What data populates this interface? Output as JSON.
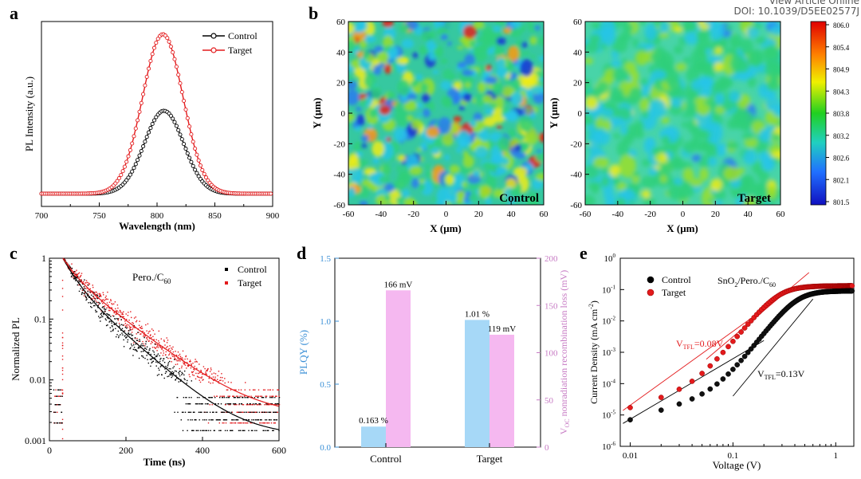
{
  "header": {
    "top_line": "View Article Online",
    "doi": "DOI: 10.1039/D5EE02577J"
  },
  "colors": {
    "control": "#000000",
    "target": "#e31a1c",
    "plqy": "#a6d8f7",
    "voc": "#f5b8f0",
    "voc_axis": "#c77bc4",
    "plqy_axis": "#3a8fd6"
  },
  "chart_data": [
    {
      "panel": "a",
      "type": "line",
      "xlabel": "Wavelength (nm)",
      "ylabel": "PL Intensity (a.u.)",
      "xlim": [
        700,
        900
      ],
      "xticks": [
        "700",
        "750",
        "800",
        "850",
        "900"
      ],
      "ylim": [
        0,
        1.08
      ],
      "series": [
        {
          "name": "Control",
          "peak_x": 806,
          "peak_y": 0.52,
          "sigma": 17,
          "baseline": 0.0
        },
        {
          "name": "Target",
          "peak_x": 805,
          "peak_y": 1.0,
          "sigma": 17.5,
          "baseline": 0.0
        }
      ],
      "legend": "top-right"
    },
    {
      "panel": "b",
      "type": "heatmap",
      "maps": [
        {
          "label": "Control",
          "xlabel": "X (μm)",
          "ylabel": "Y (μm)"
        },
        {
          "label": "Target",
          "xlabel": "X (μm)",
          "ylabel": "Y (μm)"
        }
      ],
      "xlim": [
        -60,
        60
      ],
      "ylim": [
        -60,
        60
      ],
      "xticks": [
        "-60",
        "-40",
        "-20",
        "0",
        "20",
        "40",
        "60"
      ],
      "yticks": [
        "60",
        "40",
        "20",
        "0",
        "-20",
        "-40",
        "-60"
      ],
      "colorbar": [
        "806.0",
        "805.4",
        "804.9",
        "804.3",
        "803.8",
        "803.2",
        "802.6",
        "802.1",
        "801.5"
      ]
    },
    {
      "panel": "c",
      "type": "scatter",
      "title": "Pero./C60",
      "title_main": "Pero./C",
      "title_sub": "60",
      "xlabel": "Time (ns)",
      "ylabel": "Normalized PL",
      "xlim": [
        0,
        600
      ],
      "ylim": [
        0.001,
        1
      ],
      "yscale": "log",
      "xticks": [
        "0",
        "200",
        "400",
        "600"
      ],
      "yticks": [
        "1",
        "0.1",
        "0.01",
        "0.001"
      ],
      "series": [
        {
          "name": "Control",
          "a1": 0.55,
          "t1": 28,
          "a2": 0.45,
          "t2": 78,
          "floor": 0.0012
        },
        {
          "name": "Target",
          "a1": 0.45,
          "t1": 30,
          "a2": 0.55,
          "t2": 92,
          "floor": 0.0025
        }
      ],
      "legend": "top-right"
    },
    {
      "panel": "d",
      "type": "bar",
      "categories": [
        "Control",
        "Target"
      ],
      "series": [
        {
          "name": "PLQY (%)",
          "axis": "left",
          "values": [
            0.163,
            1.01
          ],
          "labels": [
            "0.163 %",
            "1.01 %"
          ]
        },
        {
          "name": "VOC nonradiation recombination loss (mV)",
          "axis": "right",
          "values": [
            166,
            119
          ],
          "labels": [
            "166 mV",
            "119 mV"
          ]
        }
      ],
      "ylabel": "PLQY (%)",
      "ylim": [
        0,
        1.5
      ],
      "yticks": [
        "0.0",
        "0.5",
        "1.0",
        "1.5"
      ],
      "y2label_main": "V",
      "y2label_sub": "OC",
      "y2label_rest": " nonradiation recombination loss (mV)",
      "y2lim": [
        0,
        200
      ],
      "y2ticks": [
        "0",
        "50",
        "100",
        "150",
        "200"
      ]
    },
    {
      "panel": "e",
      "type": "scatter",
      "title_main": "SnO",
      "title_sub1": "2",
      "title_mid": "/Pero./C",
      "title_sub2": "60",
      "xlabel": "Voltage (V)",
      "ylabel_main": "Current Density (mA cm",
      "ylabel_sup": "-2",
      "ylabel_end": ")",
      "xscale": "log",
      "yscale": "log",
      "xlim": [
        0.008,
        1.5
      ],
      "ylim": [
        1e-06,
        1
      ],
      "xticks": [
        "0.01",
        "0.1",
        "1"
      ],
      "yticks_exp": [
        "0",
        "-1",
        "-2",
        "-3",
        "-4",
        "-5",
        "-6"
      ],
      "series": [
        {
          "name": "Control",
          "vtfl": 0.13
        },
        {
          "name": "Target",
          "vtfl": 0.08
        }
      ],
      "annotations": [
        {
          "main": "V",
          "sub": "TFL",
          "rest": "=0.08V",
          "series": "Target"
        },
        {
          "main": "V",
          "sub": "TFL",
          "rest": "=0.13V",
          "series": "Control"
        }
      ],
      "legend": "top-left"
    }
  ],
  "panel_letters": [
    "a",
    "b",
    "c",
    "d",
    "e"
  ]
}
